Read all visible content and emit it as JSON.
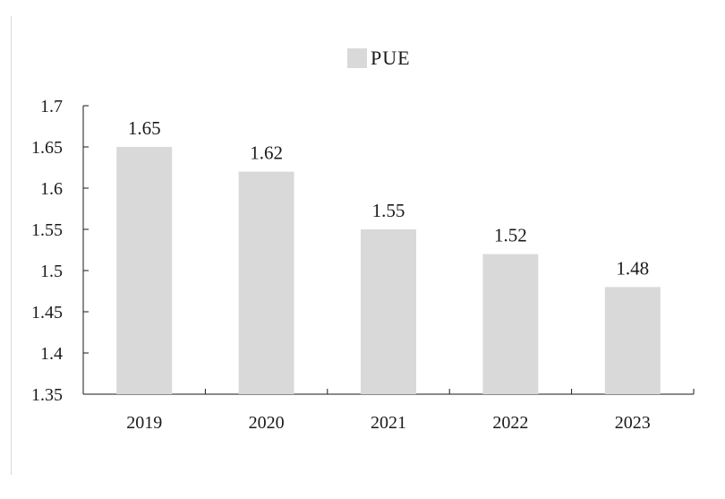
{
  "chart_data": {
    "type": "bar",
    "categories": [
      "2019",
      "2020",
      "2021",
      "2022",
      "2023"
    ],
    "series": [
      {
        "name": "PUE",
        "values": [
          1.65,
          1.62,
          1.55,
          1.52,
          1.48
        ]
      }
    ],
    "data_labels": [
      "1.65",
      "1.62",
      "1.55",
      "1.52",
      "1.48"
    ],
    "ylim": [
      1.35,
      1.7
    ],
    "yticks": [
      "1.35",
      "1.4",
      "1.45",
      "1.5",
      "1.55",
      "1.6",
      "1.65",
      "1.7"
    ],
    "legend": {
      "position": "top-center",
      "label": "PUE"
    },
    "grid": false,
    "colors": {
      "bar": "#d9d9d9",
      "axis": "#1a1a1a"
    }
  }
}
